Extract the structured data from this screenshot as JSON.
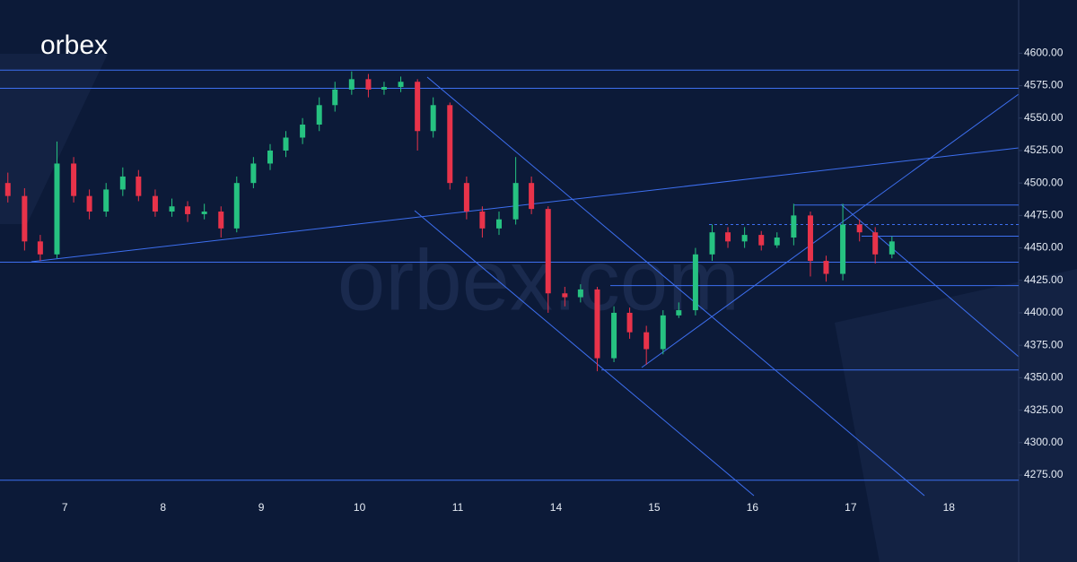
{
  "logo": "orbex",
  "watermark": "orbex.com",
  "chart_data": {
    "type": "candlestick",
    "x": [
      -0.58,
      -0.41,
      -0.25,
      -0.08,
      0.09,
      0.25,
      0.42,
      0.59,
      0.75,
      0.92,
      1.09,
      1.25,
      1.42,
      1.59,
      1.75,
      1.92,
      2.09,
      2.25,
      2.42,
      2.59,
      2.75,
      2.92,
      3.09,
      3.25,
      3.42,
      3.59,
      3.75,
      3.92,
      4.09,
      4.25,
      4.42,
      4.59,
      4.75,
      4.92,
      5.09,
      5.25,
      5.42,
      5.59,
      5.75,
      5.92,
      6.09,
      6.25,
      6.42,
      6.59,
      6.75,
      6.92,
      7.09,
      7.25,
      7.42,
      7.59,
      7.75,
      7.92,
      8.09,
      8.25,
      8.42
    ],
    "open": [
      4500,
      4490,
      4455,
      4445,
      4515,
      4490,
      4478,
      4495,
      4505,
      4490,
      4478,
      4482,
      4476,
      4478,
      4465,
      4500,
      4515,
      4525,
      4535,
      4545,
      4560,
      4572,
      4580,
      4572,
      4574,
      4578,
      4540,
      4560,
      4500,
      4478,
      4465,
      4472,
      4500,
      4480,
      4415,
      4412,
      4418,
      4365,
      4400,
      4385,
      4372,
      4398,
      4402,
      4445,
      4462,
      4455,
      4460,
      4452,
      4458,
      4475,
      4440,
      4430,
      4468,
      4462,
      4445
    ],
    "high": [
      4508,
      4496,
      4460,
      4532,
      4520,
      4495,
      4500,
      4512,
      4510,
      4495,
      4488,
      4486,
      4484,
      4482,
      4505,
      4520,
      4530,
      4540,
      4550,
      4566,
      4578,
      4586,
      4584,
      4578,
      4582,
      4580,
      4566,
      4562,
      4505,
      4482,
      4478,
      4520,
      4505,
      4482,
      4420,
      4422,
      4420,
      4405,
      4404,
      4390,
      4402,
      4408,
      4450,
      4468,
      4466,
      4466,
      4463,
      4462,
      4484,
      4478,
      4444,
      4484,
      4472,
      4466,
      4459
    ],
    "low": [
      4485,
      4448,
      4440,
      4442,
      4485,
      4472,
      4474,
      4490,
      4486,
      4474,
      4474,
      4470,
      4472,
      4458,
      4462,
      4496,
      4510,
      4520,
      4530,
      4540,
      4555,
      4568,
      4566,
      4568,
      4570,
      4525,
      4535,
      4495,
      4472,
      4458,
      4460,
      4468,
      4476,
      4400,
      4405,
      4408,
      4355,
      4362,
      4380,
      4360,
      4368,
      4396,
      4398,
      4440,
      4450,
      4450,
      4448,
      4450,
      4452,
      4428,
      4424,
      4425,
      4455,
      4438,
      4442
    ],
    "close": [
      4490,
      4455,
      4445,
      4515,
      4490,
      4478,
      4495,
      4505,
      4490,
      4478,
      4482,
      4476,
      4478,
      4465,
      4500,
      4515,
      4525,
      4535,
      4545,
      4560,
      4572,
      4580,
      4572,
      4574,
      4578,
      4540,
      4560,
      4500,
      4478,
      4465,
      4472,
      4500,
      4480,
      4415,
      4412,
      4418,
      4365,
      4400,
      4385,
      4372,
      4398,
      4402,
      4445,
      4462,
      4455,
      4460,
      4452,
      4458,
      4475,
      4440,
      4430,
      4468,
      4462,
      4445,
      4455
    ],
    "up_color": "#26c281",
    "down_color": "#e8334a",
    "levels": [
      4587,
      4573,
      4483,
      4468,
      4459,
      4439,
      4421,
      4356,
      4271
    ],
    "level_color": "#3d6ff0",
    "xlim": [
      -0.66,
      9.71
    ],
    "ylim": [
      4208,
      4641
    ],
    "xticks": [
      {
        "value": 0,
        "label": "7"
      },
      {
        "value": 1,
        "label": "8"
      },
      {
        "value": 2,
        "label": "9"
      },
      {
        "value": 3,
        "label": "10"
      },
      {
        "value": 4,
        "label": "11"
      },
      {
        "value": 5,
        "label": "14"
      },
      {
        "value": 6,
        "label": "15"
      },
      {
        "value": 7,
        "label": "16"
      },
      {
        "value": 8,
        "label": "17"
      },
      {
        "value": 9,
        "label": "18"
      }
    ],
    "yticks": [
      {
        "value": 4275,
        "label": "4275.00"
      },
      {
        "value": 4300,
        "label": "4300.00"
      },
      {
        "value": 4325,
        "label": "4325.00"
      },
      {
        "value": 4350,
        "label": "4350.00"
      },
      {
        "value": 4375,
        "label": "4375.00"
      },
      {
        "value": 4400,
        "label": "4400.00"
      },
      {
        "value": 4425,
        "label": "4425.00"
      },
      {
        "value": 4450,
        "label": "4450.00"
      },
      {
        "value": 4475,
        "label": "4475.00"
      },
      {
        "value": 4500,
        "label": "4500.00"
      },
      {
        "value": 4525,
        "label": "4525.00"
      },
      {
        "value": 4550,
        "label": "4550.00"
      },
      {
        "value": 4575,
        "label": "4575.00"
      },
      {
        "value": 4600,
        "label": "4600.00"
      }
    ]
  }
}
